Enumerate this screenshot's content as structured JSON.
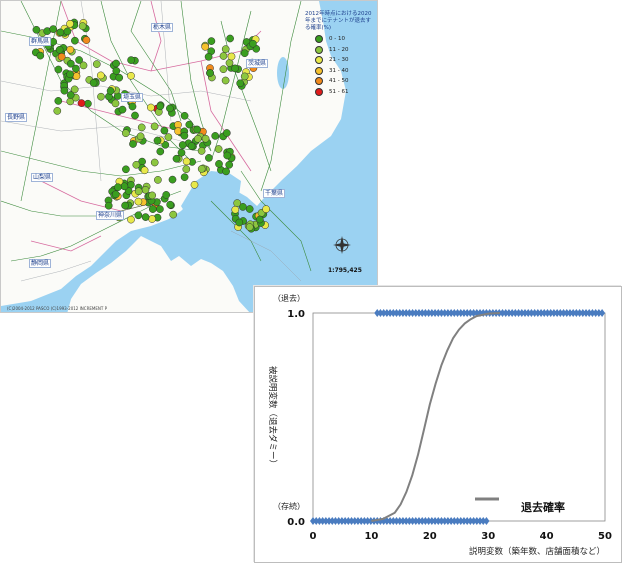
{
  "map": {
    "legend_title": "2012年時点における2020年までにテナントが退去する確率(%)",
    "legend": [
      {
        "label": "0 - 10",
        "color": "#3a9e1f"
      },
      {
        "label": "11 - 20",
        "color": "#8cc63f"
      },
      {
        "label": "21 - 30",
        "color": "#e8e84a"
      },
      {
        "label": "31 - 40",
        "color": "#f5c12e"
      },
      {
        "label": "41 - 50",
        "color": "#f08a1c"
      },
      {
        "label": "51 - 61",
        "color": "#e01b1b"
      }
    ],
    "prefectures": {
      "gunma": "群馬県",
      "tochigi": "栃木県",
      "ibaraki": "茨城県",
      "saitama": "埼玉県",
      "nagano": "長野県",
      "yamanashi": "山梨県",
      "kanagawa": "神奈川県",
      "chiba": "千葉県",
      "shizuoka": "静岡県"
    },
    "scale": "1:795,425",
    "copyright": "(C)2004-2012 PASCO (C)1993-2012 INCREMENT P"
  },
  "chart_data": {
    "type": "scatter",
    "xlabel": "説明変数（築年数、店舗面積など）",
    "ylabel": "被説明変数（退去ダミー）",
    "xlim": [
      0,
      50
    ],
    "ylim": [
      0.0,
      1.0
    ],
    "x_ticks": [
      "0",
      "10",
      "20",
      "30",
      "40",
      "50"
    ],
    "y_ticks": [
      "0.0",
      "1.0"
    ],
    "y_category_labels": {
      "top": "（退去）",
      "bottom": "（存続）"
    },
    "series": [
      {
        "values_at": 1.0,
        "x_from": 11,
        "x_to": 50
      },
      {
        "values_at": 0.0,
        "x_from": 0,
        "x_to": 30
      },
      {
        "name": "退去確率",
        "type": "line",
        "x": [
          10,
          12,
          14,
          15,
          16,
          17,
          18,
          19,
          20,
          21,
          22,
          23,
          24,
          25,
          26,
          27,
          28,
          30,
          32
        ],
        "y": [
          0.0,
          0.01,
          0.04,
          0.08,
          0.14,
          0.22,
          0.32,
          0.44,
          0.56,
          0.66,
          0.75,
          0.82,
          0.88,
          0.92,
          0.95,
          0.97,
          0.985,
          0.997,
          1.0
        ]
      }
    ],
    "marker_color": "#4a7cc0",
    "line_color": "#808080",
    "legend": "bottom-right"
  }
}
